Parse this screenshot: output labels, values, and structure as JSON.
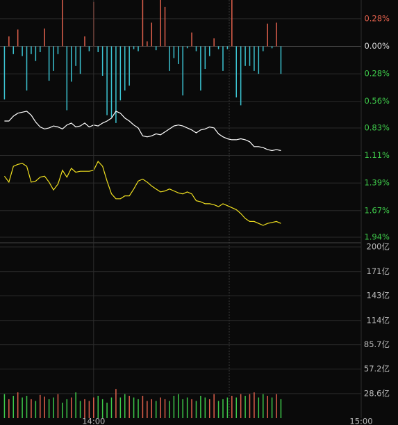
{
  "chart_data": [
    {
      "type": "bar-line",
      "x": [
        820,
        821,
        822,
        823,
        824,
        825,
        826,
        827,
        828,
        829,
        830,
        831,
        832,
        833,
        834,
        835,
        836,
        837,
        838,
        839,
        840,
        841,
        842,
        843,
        844,
        845,
        846,
        847,
        848,
        849,
        850,
        851,
        852,
        853,
        854,
        855,
        856,
        857,
        858,
        859,
        860,
        861,
        862,
        863,
        864,
        865,
        866,
        867,
        868,
        869,
        870,
        871,
        872,
        873,
        874,
        875,
        876,
        877,
        878,
        879,
        880,
        881,
        882
      ],
      "xlim": [
        819,
        900
      ],
      "ylim": [
        -1.94,
        0.47
      ],
      "yticks": [
        {
          "value": 0.28,
          "label": "0.28%"
        },
        {
          "value": 0,
          "label": "0.00%"
        },
        {
          "value": -0.28,
          "label": "0.28%"
        },
        {
          "value": -0.56,
          "label": "0.56%"
        },
        {
          "value": -0.83,
          "label": "0.83%"
        },
        {
          "value": -1.11,
          "label": "1.11%"
        },
        {
          "value": -1.39,
          "label": "1.39%"
        },
        {
          "value": -1.67,
          "label": "1.67%"
        },
        {
          "value": -1.94,
          "label": "1.94%"
        }
      ],
      "grid": true,
      "up_color": "#e0604c",
      "down_color": "#3cc4d2",
      "series": [
        {
          "kind": "bar",
          "values": [
            -0.54,
            0.1,
            -0.08,
            0.17,
            -0.1,
            -0.45,
            -0.08,
            -0.15,
            -0.06,
            0.18,
            -0.35,
            -0.25,
            -0.08,
            0.47,
            -0.65,
            -0.36,
            -0.2,
            -0.28,
            0.1,
            -0.05,
            0.45,
            -0.06,
            -0.3,
            -0.7,
            -0.72,
            -0.78,
            -0.55,
            -0.45,
            -0.4,
            -0.03,
            -0.05,
            0.47,
            0.05,
            0.24,
            -0.04,
            0.47,
            0.4,
            -0.25,
            -0.12,
            -0.18,
            -0.5,
            -0.02,
            0.14,
            -0.05,
            -0.45,
            -0.23,
            -0.1,
            0.08,
            -0.03,
            -0.25,
            -0.03,
            0.47,
            -0.52,
            -0.6,
            -0.2,
            -0.2,
            -0.25,
            -0.28,
            -0.05,
            0.23,
            -0.02,
            0.24,
            -0.28
          ]
        },
        {
          "kind": "line",
          "color": "#ffffff",
          "values": [
            -0.76,
            -0.76,
            -0.71,
            -0.68,
            -0.67,
            -0.66,
            -0.7,
            -0.77,
            -0.82,
            -0.84,
            -0.83,
            -0.81,
            -0.82,
            -0.84,
            -0.8,
            -0.78,
            -0.82,
            -0.81,
            -0.78,
            -0.82,
            -0.8,
            -0.81,
            -0.78,
            -0.76,
            -0.73,
            -0.66,
            -0.68,
            -0.73,
            -0.76,
            -0.8,
            -0.83,
            -0.91,
            -0.92,
            -0.91,
            -0.89,
            -0.9,
            -0.87,
            -0.84,
            -0.81,
            -0.8,
            -0.81,
            -0.83,
            -0.85,
            -0.88,
            -0.85,
            -0.84,
            -0.82,
            -0.83,
            -0.89,
            -0.92,
            -0.94,
            -0.95,
            -0.95,
            -0.94,
            -0.95,
            -0.97,
            -1.02,
            -1.02,
            -1.03,
            -1.05,
            -1.06,
            -1.05,
            -1.06
          ]
        },
        {
          "kind": "line",
          "color": "#f0e020",
          "values": [
            -1.32,
            -1.38,
            -1.22,
            -1.2,
            -1.19,
            -1.22,
            -1.38,
            -1.37,
            -1.33,
            -1.32,
            -1.38,
            -1.46,
            -1.4,
            -1.26,
            -1.33,
            -1.24,
            -1.28,
            -1.27,
            -1.27,
            -1.27,
            -1.26,
            -1.17,
            -1.22,
            -1.37,
            -1.5,
            -1.55,
            -1.55,
            -1.52,
            -1.52,
            -1.45,
            -1.37,
            -1.35,
            -1.38,
            -1.42,
            -1.45,
            -1.48,
            -1.47,
            -1.45,
            -1.47,
            -1.49,
            -1.5,
            -1.48,
            -1.5,
            -1.57,
            -1.58,
            -1.6,
            -1.6,
            -1.61,
            -1.63,
            -1.6,
            -1.62,
            -1.64,
            -1.66,
            -1.7,
            -1.75,
            -1.78,
            -1.78,
            -1.8,
            -1.82,
            -1.8,
            -1.79,
            -1.78,
            -1.8
          ]
        }
      ]
    },
    {
      "type": "bar",
      "x": [
        820,
        821,
        822,
        823,
        824,
        825,
        826,
        827,
        828,
        829,
        830,
        831,
        832,
        833,
        834,
        835,
        836,
        837,
        838,
        839,
        840,
        841,
        842,
        843,
        844,
        845,
        846,
        847,
        848,
        849,
        850,
        851,
        852,
        853,
        854,
        855,
        856,
        857,
        858,
        859,
        860,
        861,
        862,
        863,
        864,
        865,
        866,
        867,
        868,
        869,
        870,
        871,
        872,
        873,
        874,
        875,
        876,
        877,
        878,
        879,
        880,
        881,
        882
      ],
      "xlim": [
        819,
        900
      ],
      "xticks": [
        {
          "value": 840,
          "label": "14:00"
        },
        {
          "value": 900,
          "label": "15:00"
        }
      ],
      "ylim": [
        0,
        200
      ],
      "yticks": [
        {
          "value": 200,
          "label": "200亿"
        },
        {
          "value": 171,
          "label": "171亿"
        },
        {
          "value": 143,
          "label": "143亿"
        },
        {
          "value": 114,
          "label": "114亿"
        },
        {
          "value": 85.7,
          "label": "85.7亿"
        },
        {
          "value": 57.2,
          "label": "57.2亿"
        },
        {
          "value": 28.6,
          "label": "28.6亿"
        }
      ],
      "grid": true,
      "values": [
        28,
        22,
        26,
        30,
        24,
        26,
        22,
        20,
        27,
        25,
        22,
        24,
        28,
        18,
        22,
        24,
        30,
        20,
        22,
        20,
        24,
        26,
        22,
        18,
        24,
        34,
        24,
        28,
        26,
        24,
        22,
        26,
        20,
        22,
        20,
        24,
        22,
        20,
        26,
        28,
        22,
        24,
        22,
        20,
        26,
        24,
        22,
        28,
        20,
        22,
        24,
        26,
        24,
        28,
        26,
        28,
        30,
        24,
        28,
        26,
        24,
        28,
        22
      ],
      "colors": [
        "#3ec94a",
        "#e0604c",
        "#3ec94a",
        "#e0604c",
        "#3ec94a",
        "#3ec94a",
        "#e0604c",
        "#3ec94a",
        "#e0604c",
        "#e0604c",
        "#3ec94a",
        "#3ec94a",
        "#e0604c",
        "#3ec94a",
        "#3ec94a",
        "#e0604c",
        "#3ec94a",
        "#3ec94a",
        "#e0604c",
        "#e0604c",
        "#e0604c",
        "#3ec94a",
        "#3ec94a",
        "#3ec94a",
        "#3ec94a",
        "#e0604c",
        "#3ec94a",
        "#3ec94a",
        "#e0604c",
        "#3ec94a",
        "#3ec94a",
        "#e0604c",
        "#e0604c",
        "#e0604c",
        "#3ec94a",
        "#e0604c",
        "#e0604c",
        "#3ec94a",
        "#3ec94a",
        "#3ec94a",
        "#3ec94a",
        "#3ec94a",
        "#e0604c",
        "#3ec94a",
        "#3ec94a",
        "#3ec94a",
        "#e0604c",
        "#e0604c",
        "#3ec94a",
        "#3ec94a",
        "#3ec94a",
        "#e0604c",
        "#3ec94a",
        "#e0604c",
        "#3ec94a",
        "#e0604c",
        "#e0604c",
        "#3ec94a",
        "#3ec94a",
        "#e0604c",
        "#3ec94a",
        "#e0604c",
        "#3ec94a"
      ]
    }
  ]
}
